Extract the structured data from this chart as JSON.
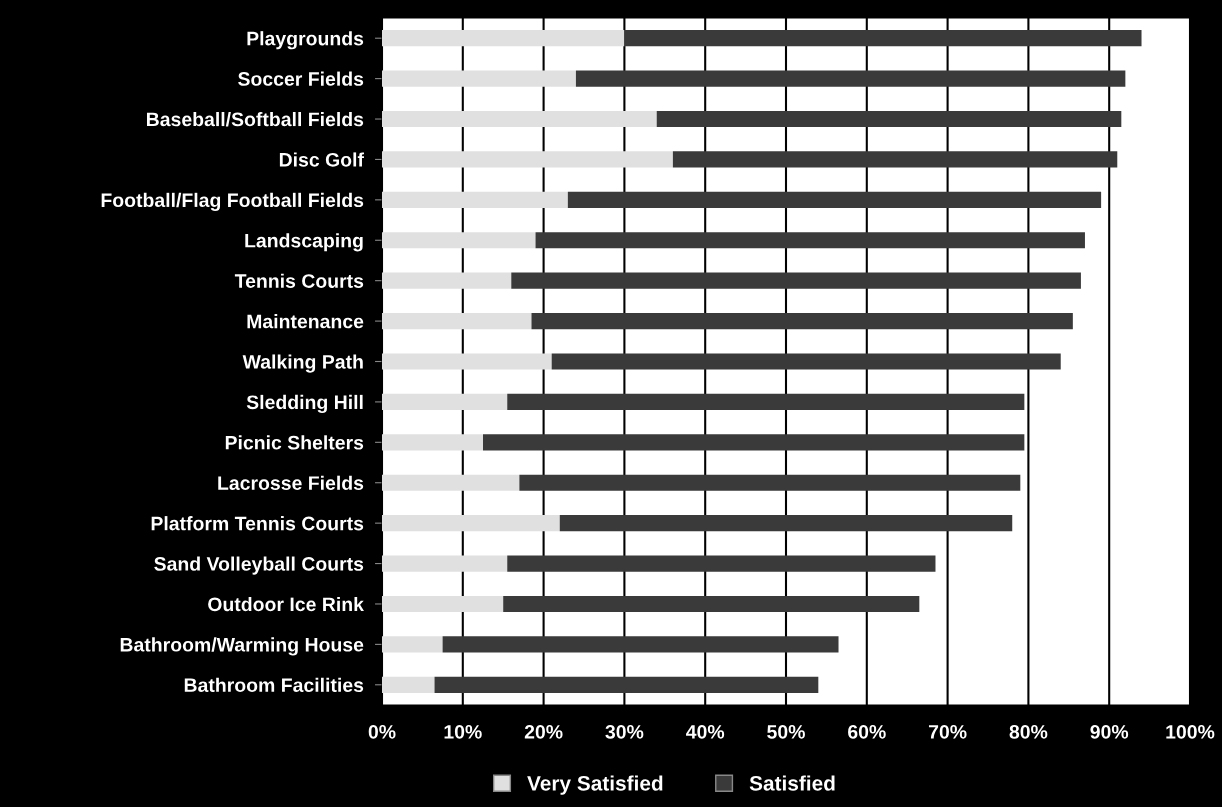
{
  "chart_data": {
    "type": "bar",
    "orientation": "horizontal",
    "stacked": true,
    "categories": [
      "Playgrounds",
      "Soccer Fields",
      "Baseball/Softball Fields",
      "Disc Golf",
      "Football/Flag Football Fields",
      "Landscaping",
      "Tennis Courts",
      "Maintenance",
      "Walking Path",
      "Sledding Hill",
      "Picnic Shelters",
      "Lacrosse Fields",
      "Platform Tennis Courts",
      "Sand Volleyball Courts",
      "Outdoor Ice Rink",
      "Bathroom/Warming House",
      "Bathroom Facilities"
    ],
    "series": [
      {
        "name": "Very Satisfied",
        "color": "#e0e0e0",
        "values": [
          30,
          24,
          34,
          36,
          23,
          19,
          16,
          18.5,
          21,
          15.5,
          12.5,
          17,
          22,
          15.5,
          15,
          7.5,
          6.5
        ]
      },
      {
        "name": "Satisfied",
        "color": "#3a3a3a",
        "values": [
          64,
          68,
          57.5,
          55,
          66,
          68,
          70.5,
          67,
          63,
          64,
          67,
          62,
          56,
          53,
          51.5,
          49,
          47.5
        ]
      }
    ],
    "xlim": [
      0,
      100
    ],
    "xticks": [
      {
        "value": 0,
        "label": "0%"
      },
      {
        "value": 10,
        "label": "10%"
      },
      {
        "value": 20,
        "label": "20%"
      },
      {
        "value": 30,
        "label": "30%"
      },
      {
        "value": 40,
        "label": "40%"
      },
      {
        "value": 50,
        "label": "50%"
      },
      {
        "value": 60,
        "label": "60%"
      },
      {
        "value": 70,
        "label": "70%"
      },
      {
        "value": 80,
        "label": "80%"
      },
      {
        "value": 90,
        "label": "90%"
      },
      {
        "value": 100,
        "label": "100%"
      }
    ],
    "grid": "x",
    "legend": "bottom"
  }
}
